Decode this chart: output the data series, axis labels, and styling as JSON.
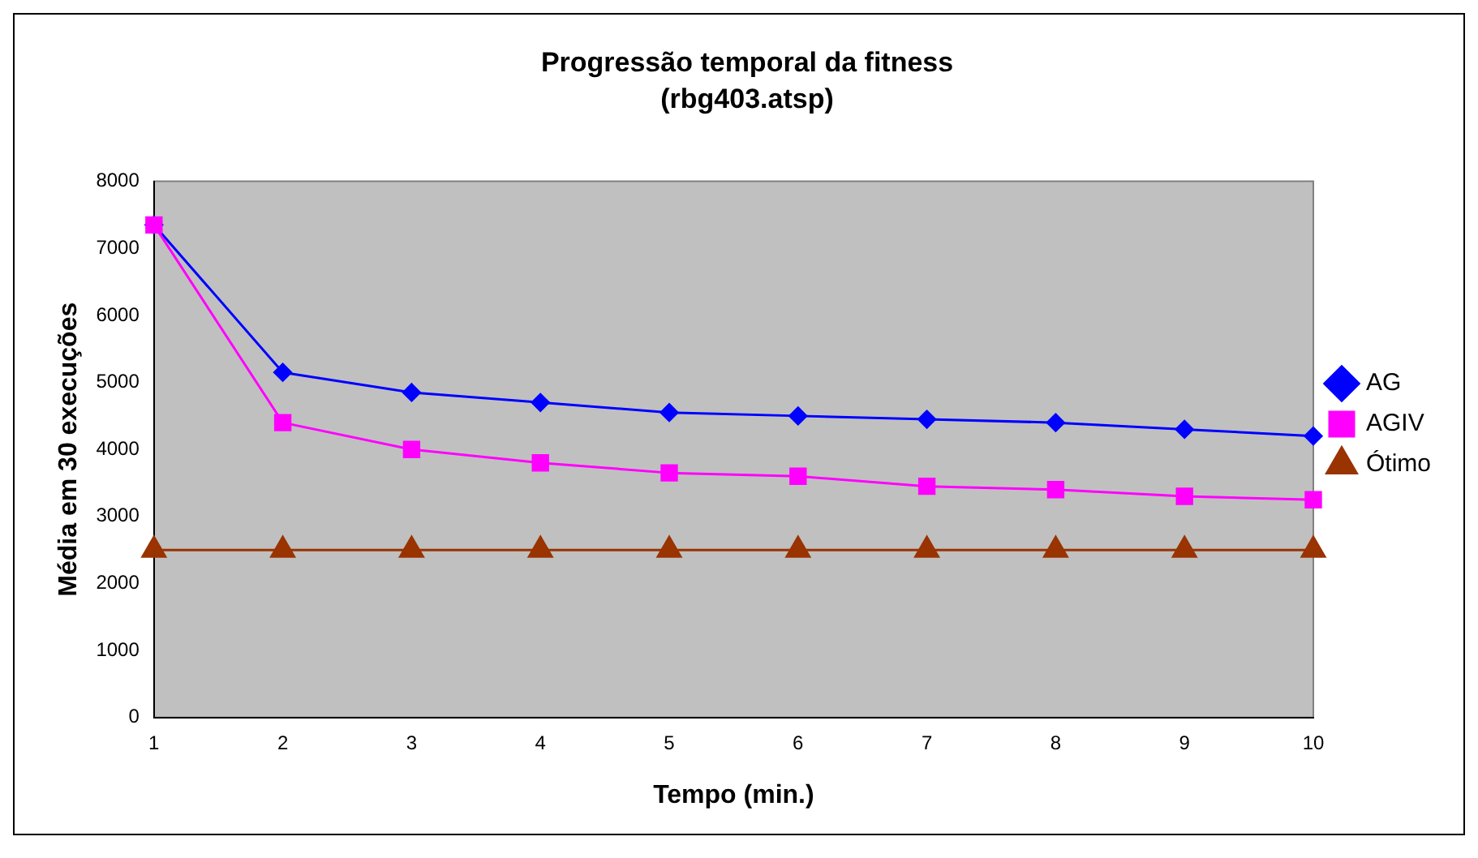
{
  "chart_data": {
    "type": "line",
    "title": "Progressão temporal da fitness",
    "subtitle": "(rbg403.atsp)",
    "xlabel": "Tempo (min.)",
    "ylabel": "Média em 30 execuções",
    "categories": [
      "1",
      "2",
      "3",
      "4",
      "5",
      "6",
      "7",
      "8",
      "9",
      "10"
    ],
    "series": [
      {
        "name": "AG",
        "color": "#0000ff",
        "marker": "diamond",
        "values": [
          7350,
          5150,
          4850,
          4700,
          4550,
          4500,
          4450,
          4400,
          4300,
          4200
        ]
      },
      {
        "name": "AGIV",
        "color": "#ff00ff",
        "marker": "square",
        "values": [
          7350,
          4400,
          4000,
          3800,
          3650,
          3600,
          3450,
          3400,
          3300,
          3250
        ]
      },
      {
        "name": "Ótimo",
        "color": "#993300",
        "marker": "triangle",
        "values": [
          2500,
          2500,
          2500,
          2500,
          2500,
          2500,
          2500,
          2500,
          2500,
          2500
        ]
      }
    ],
    "ylim": [
      0,
      8000
    ],
    "yticks": [
      0,
      1000,
      2000,
      3000,
      4000,
      5000,
      6000,
      7000,
      8000
    ],
    "grid": false,
    "legend": "right",
    "line_style": "solid"
  }
}
